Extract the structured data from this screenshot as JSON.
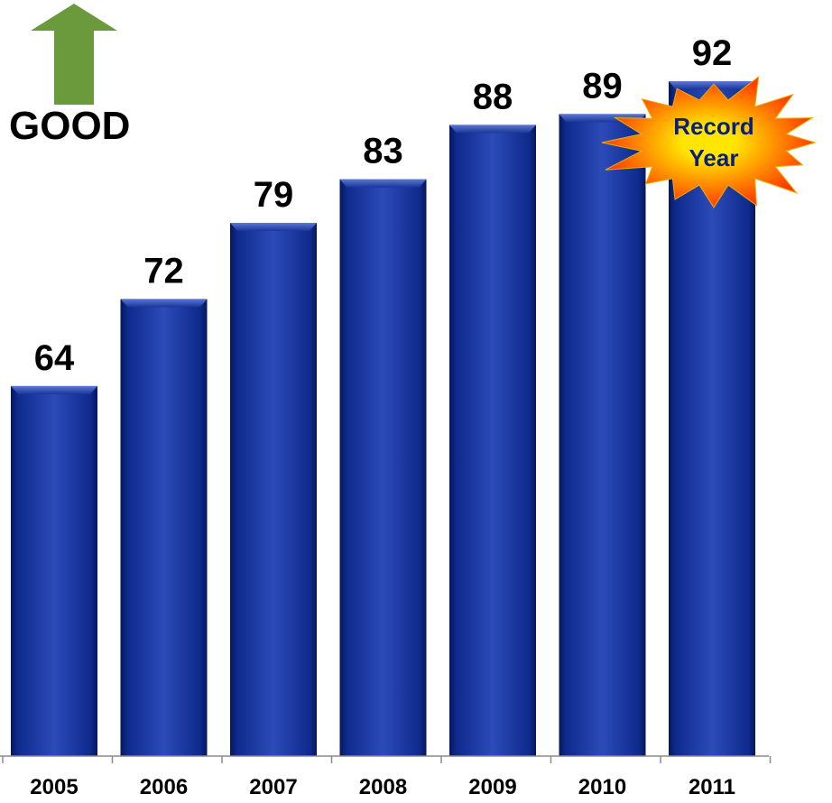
{
  "chart_data": {
    "type": "bar",
    "categories": [
      "2005",
      "2006",
      "2007",
      "2008",
      "2009",
      "2010",
      "2011"
    ],
    "values": [
      64,
      72,
      79,
      83,
      88,
      89,
      92
    ],
    "title": "",
    "xlabel": "",
    "ylabel": "",
    "ylim": [
      30,
      95
    ],
    "grid": false,
    "data_labels": true,
    "bar_color": "#0e2a8c",
    "bar_color_light": "#2c4bb8",
    "bar_color_dark": "#07175c"
  },
  "annotations": {
    "good_label": "GOOD",
    "good_arrow_color": "#6b9a3c",
    "record_burst": {
      "line1": "Record",
      "line2": "Year",
      "fill_inner": "#ffe600",
      "fill_outer": "#ff3a00"
    }
  }
}
